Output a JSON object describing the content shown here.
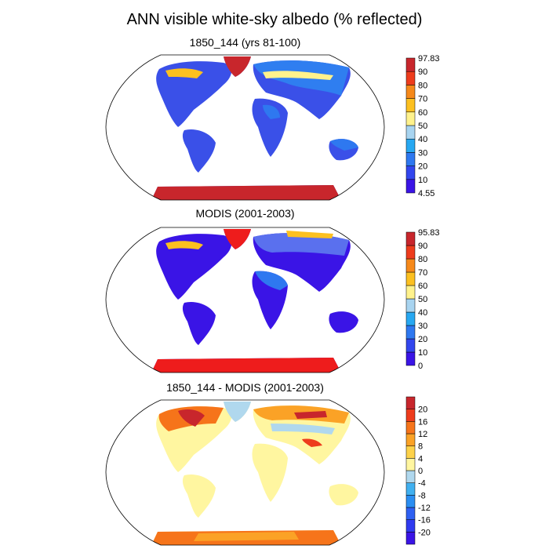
{
  "title": "ANN visible white-sky albedo (% reflected)",
  "panels": [
    {
      "title": "1850_144 (yrs 81-100)",
      "colorbar": {
        "colors": [
          "#3a14e6",
          "#3246ee",
          "#2e78f0",
          "#27a8f2",
          "#a8d4f0",
          "#fff28c",
          "#fcc020",
          "#f6891a",
          "#ee3c1c",
          "#c8262c"
        ],
        "labels": [
          "97.83",
          "90",
          "80",
          "70",
          "60",
          "50",
          "40",
          "30",
          "20",
          "10",
          "4.55"
        ]
      }
    },
    {
      "title": "MODIS (2001-2003)",
      "colorbar": {
        "colors": [
          "#3a14e6",
          "#3246ee",
          "#2e78f0",
          "#27a8f2",
          "#a8d4f0",
          "#fff28c",
          "#fcc020",
          "#f6891a",
          "#ee3c1c",
          "#c8262c"
        ],
        "labels": [
          "95.83",
          "90",
          "80",
          "70",
          "60",
          "50",
          "40",
          "30",
          "20",
          "10",
          "0"
        ]
      }
    },
    {
      "title": "1850_144 - MODIS (2001-2003)",
      "colorbar": {
        "colors": [
          "#3a14e6",
          "#2f3af0",
          "#2e60f2",
          "#2a8ef2",
          "#40b0f0",
          "#b0d8ee",
          "#fff6a0",
          "#fdd24a",
          "#fba226",
          "#f6741a",
          "#ee3c1c",
          "#c8262c"
        ],
        "labels": [
          "20",
          "16",
          "12",
          "8",
          "4",
          "0",
          "-4",
          "-8",
          "-12",
          "-16",
          "-20"
        ]
      }
    }
  ]
}
